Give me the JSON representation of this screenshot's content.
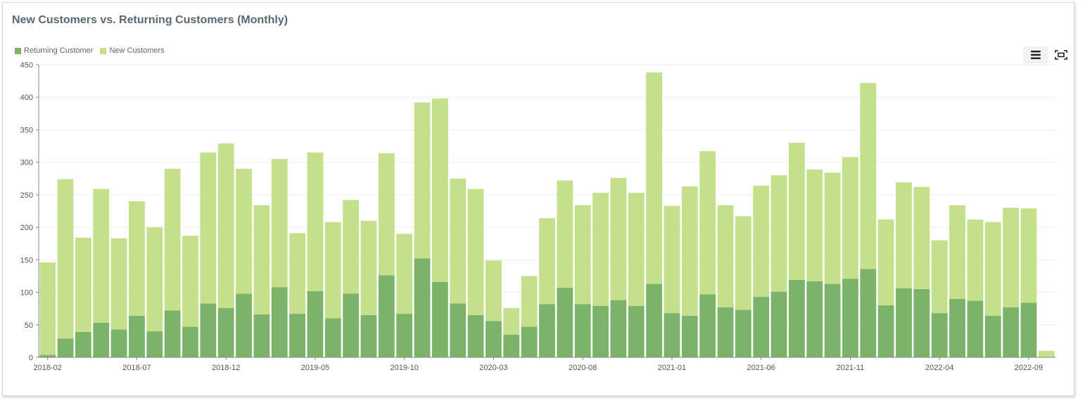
{
  "chart_data": {
    "type": "bar",
    "stacked": true,
    "title": "New Customers vs. Returning Customers (Monthly)",
    "xlabel": "",
    "ylabel": "",
    "ylim": [
      0,
      450
    ],
    "yticks": [
      0,
      50,
      100,
      150,
      200,
      250,
      300,
      350,
      400,
      450
    ],
    "grid": true,
    "legend_position": "top-left",
    "colors": {
      "Returning Customer": "#7cb36a",
      "New Customers": "#c5e08a"
    },
    "categories": [
      "2018-02",
      "2018-03",
      "2018-04",
      "2018-05",
      "2018-06",
      "2018-07",
      "2018-08",
      "2018-09",
      "2018-10",
      "2018-11",
      "2018-12",
      "2019-01",
      "2019-02",
      "2019-03",
      "2019-04",
      "2019-05",
      "2019-06",
      "2019-07",
      "2019-08",
      "2019-09",
      "2019-10",
      "2019-11",
      "2019-12",
      "2020-01",
      "2020-02",
      "2020-03",
      "2020-04",
      "2020-05",
      "2020-06",
      "2020-07",
      "2020-08",
      "2020-09",
      "2020-10",
      "2020-11",
      "2020-12",
      "2021-01",
      "2021-02",
      "2021-03",
      "2021-04",
      "2021-05",
      "2021-06",
      "2021-07",
      "2021-08",
      "2021-09",
      "2021-10",
      "2021-11",
      "2021-12",
      "2022-01",
      "2022-02",
      "2022-03",
      "2022-04",
      "2022-05",
      "2022-06",
      "2022-07",
      "2022-08",
      "2022-09",
      "2022-10"
    ],
    "x_tick_labels": [
      "2018-02",
      "2018-07",
      "2018-12",
      "2019-05",
      "2019-10",
      "2020-03",
      "2020-08",
      "2021-01",
      "2021-06",
      "2021-11",
      "2022-04",
      "2022-09"
    ],
    "series": [
      {
        "name": "Returning Customer",
        "values": [
          4,
          29,
          39,
          53,
          43,
          64,
          40,
          72,
          47,
          83,
          76,
          98,
          66,
          108,
          67,
          102,
          60,
          98,
          65,
          126,
          67,
          152,
          116,
          83,
          65,
          56,
          35,
          47,
          82,
          107,
          82,
          79,
          88,
          79,
          113,
          68,
          64,
          97,
          77,
          73,
          93,
          101,
          119,
          117,
          113,
          121,
          136,
          80,
          106,
          105,
          68,
          90,
          87,
          64,
          77,
          84,
          0
        ]
      },
      {
        "name": "New Customers",
        "values": [
          142,
          245,
          145,
          206,
          140,
          176,
          160,
          218,
          140,
          232,
          253,
          192,
          168,
          197,
          124,
          213,
          148,
          144,
          145,
          188,
          123,
          240,
          282,
          192,
          194,
          93,
          41,
          78,
          132,
          165,
          152,
          174,
          188,
          174,
          325,
          165,
          199,
          220,
          157,
          144,
          171,
          179,
          211,
          172,
          171,
          187,
          286,
          132,
          163,
          157,
          112,
          144,
          125,
          144,
          153,
          145,
          10
        ]
      }
    ]
  },
  "toolbar": {
    "menu_icon": "menu-icon",
    "fullscreen_icon": "fullscreen-icon"
  }
}
